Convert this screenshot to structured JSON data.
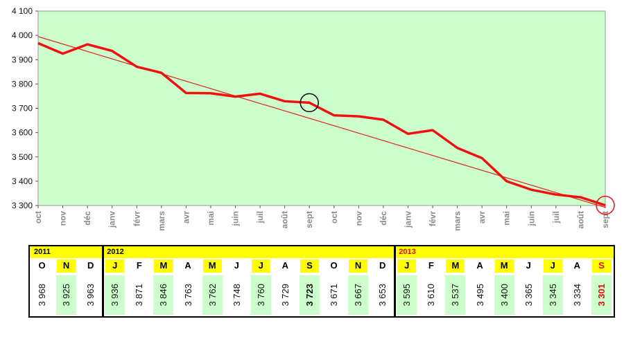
{
  "colors": {
    "plot_background": "#ccffcc",
    "line": "#ee1111",
    "trend": "#dd2222",
    "highlight_yellow": "#ffff00",
    "value_green": "#ccffcc",
    "red_text": "#e01010",
    "x_label_gray": "#8a8a8a"
  },
  "chart_data": {
    "type": "line",
    "title": "",
    "xlabel": "",
    "ylabel": "",
    "ylim": [
      3300,
      4100
    ],
    "yticks": [
      "3 300",
      "3 400",
      "3 500",
      "3 600",
      "3 700",
      "3 800",
      "3 900",
      "4 000",
      "4 100"
    ],
    "grid": false,
    "categories": [
      "oct",
      "nov",
      "déc",
      "janv",
      "févr",
      "mars",
      "avr",
      "mai",
      "juin",
      "juil",
      "août",
      "sept",
      "oct",
      "nov",
      "déc",
      "janv",
      "févr",
      "mars",
      "avr",
      "mai",
      "juin",
      "juil",
      "août",
      "sept"
    ],
    "series": [
      {
        "values": [
          3968,
          3925,
          3963,
          3936,
          3871,
          3846,
          3763,
          3762,
          3748,
          3760,
          3729,
          3723,
          3671,
          3667,
          3653,
          3595,
          3610,
          3537,
          3495,
          3400,
          3365,
          3345,
          3334,
          3301
        ]
      }
    ],
    "trendline": {
      "start": 3995,
      "end": 3292
    },
    "markers": [
      {
        "index": 11,
        "color": "#000000"
      },
      {
        "index": 23,
        "color": "#ee1111"
      }
    ]
  },
  "table": {
    "years": [
      {
        "label": "2011",
        "start": 0,
        "red": false
      },
      {
        "label": "2012",
        "start": 3,
        "red": false
      },
      {
        "label": "2013",
        "start": 15,
        "red": true
      }
    ],
    "months": [
      "O",
      "N",
      "D",
      "J",
      "F",
      "M",
      "A",
      "M",
      "J",
      "J",
      "A",
      "S",
      "O",
      "N",
      "D",
      "J",
      "F",
      "M",
      "A",
      "M",
      "J",
      "J",
      "A",
      "S"
    ],
    "month_highlight": [
      false,
      true,
      false,
      true,
      false,
      true,
      false,
      true,
      false,
      true,
      false,
      true,
      false,
      true,
      false,
      true,
      false,
      true,
      false,
      true,
      false,
      true,
      false,
      true
    ],
    "values": [
      "3 968",
      "3 925",
      "3 963",
      "3 936",
      "3 871",
      "3 846",
      "3 763",
      "3 762",
      "3 748",
      "3 760",
      "3 729",
      "3 723",
      "3 671",
      "3 667",
      "3 653",
      "3 595",
      "3 610",
      "3 537",
      "3 495",
      "3 400",
      "3 365",
      "3 345",
      "3 334",
      "3 301"
    ],
    "value_green": [
      false,
      true,
      false,
      true,
      false,
      true,
      false,
      true,
      false,
      true,
      false,
      true,
      false,
      true,
      false,
      true,
      false,
      true,
      false,
      true,
      false,
      true,
      false,
      true
    ],
    "value_bold_index": 11,
    "value_red_index": 23,
    "month_red_index": 23
  }
}
